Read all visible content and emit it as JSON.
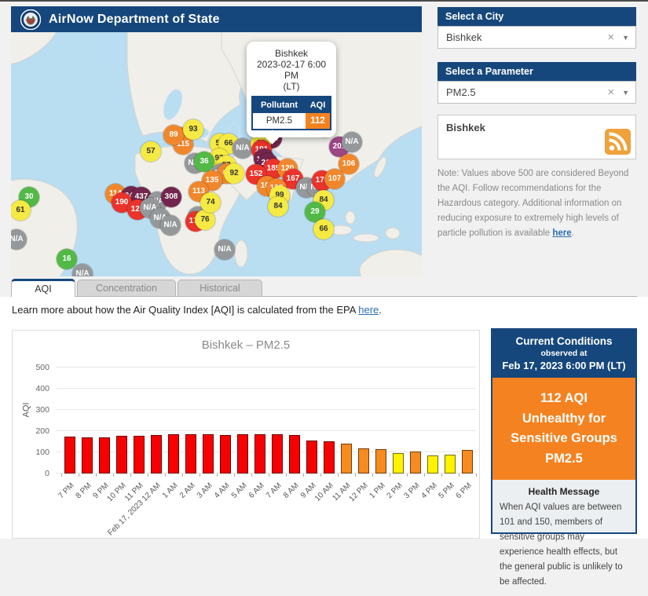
{
  "header": {
    "title": "AirNow Department of State"
  },
  "sidebar": {
    "city_label": "Select a City",
    "city_value": "Bishkek",
    "parameter_label": "Select a Parameter",
    "parameter_value": "PM2.5",
    "clear_icon": "×",
    "caret_icon": "▼",
    "feed_title": "Bishkek",
    "note_prefix": "Note: Values above 500 are considered Beyond the AQI. Follow recommendations for the Hazardous category. Additional information on reducing exposure to extremely high levels of particle pollution is available ",
    "note_link": "here",
    "note_suffix": "."
  },
  "map": {
    "popup": {
      "city": "Bishkek",
      "datetime": "2023-02-17 6:00 PM",
      "tz": "(LT)",
      "col_pollutant": "Pollutant",
      "col_aqi": "AQI",
      "pollutant": "PM2.5",
      "aqi": "112"
    },
    "markers": [
      {
        "v": "30",
        "c": "g",
        "x": 23,
        "y": 210
      },
      {
        "v": "61",
        "c": "y",
        "x": 12,
        "y": 227
      },
      {
        "v": "N/A",
        "c": "n",
        "x": 7,
        "y": 264
      },
      {
        "v": "N/A",
        "c": "n",
        "x": 91,
        "y": 308
      },
      {
        "v": "16",
        "c": "g",
        "x": 71,
        "y": 289
      },
      {
        "v": "57",
        "c": "y",
        "x": 178,
        "y": 152
      },
      {
        "v": "125",
        "c": "o",
        "x": 216,
        "y": 134
      },
      {
        "v": "115",
        "c": "o",
        "x": 219,
        "y": 143
      },
      {
        "v": "89",
        "c": "o",
        "x": 207,
        "y": 131
      },
      {
        "v": "93",
        "c": "y",
        "x": 232,
        "y": 124
      },
      {
        "v": "114",
        "c": "o",
        "x": 133,
        "y": 206
      },
      {
        "v": "242",
        "c": "m",
        "x": 153,
        "y": 209
      },
      {
        "v": "437",
        "c": "m",
        "x": 166,
        "y": 210
      },
      {
        "v": "190",
        "c": "r",
        "x": 141,
        "y": 217
      },
      {
        "v": "121",
        "c": "r",
        "x": 161,
        "y": 226
      },
      {
        "v": "N/A",
        "c": "n",
        "x": 186,
        "y": 216
      },
      {
        "v": "N/A",
        "c": "n",
        "x": 177,
        "y": 224
      },
      {
        "v": "308",
        "c": "m",
        "x": 204,
        "y": 210
      },
      {
        "v": "N/A",
        "c": "n",
        "x": 190,
        "y": 237
      },
      {
        "v": "N/A",
        "c": "n",
        "x": 203,
        "y": 246
      },
      {
        "v": "N/A",
        "c": "n",
        "x": 238,
        "y": 235
      },
      {
        "v": "172",
        "c": "r",
        "x": 235,
        "y": 241
      },
      {
        "v": "76",
        "c": "y",
        "x": 247,
        "y": 239
      },
      {
        "v": "N/A",
        "c": "n",
        "x": 272,
        "y": 277
      },
      {
        "v": "52",
        "c": "y",
        "x": 266,
        "y": 142
      },
      {
        "v": "66",
        "c": "y",
        "x": 277,
        "y": 142
      },
      {
        "v": "N/A",
        "c": "n",
        "x": 295,
        "y": 148
      },
      {
        "v": "93",
        "c": "y",
        "x": 265,
        "y": 161
      },
      {
        "v": "N/A",
        "c": "n",
        "x": 234,
        "y": 167
      },
      {
        "v": "36",
        "c": "g",
        "x": 246,
        "y": 165
      },
      {
        "v": "87",
        "c": "y",
        "x": 274,
        "y": 170
      },
      {
        "v": "N/A",
        "c": "n",
        "x": 268,
        "y": 180
      },
      {
        "v": "63",
        "c": "o",
        "x": 275,
        "y": 180
      },
      {
        "v": "92",
        "c": "y",
        "x": 284,
        "y": 180
      },
      {
        "v": "135",
        "c": "o",
        "x": 256,
        "y": 189
      },
      {
        "v": "113",
        "c": "o",
        "x": 239,
        "y": 203
      },
      {
        "v": "74",
        "c": "y",
        "x": 254,
        "y": 217
      },
      {
        "v": "1207",
        "c": "m",
        "x": 332,
        "y": 135
      },
      {
        "v": "66",
        "c": "y",
        "x": 318,
        "y": 142
      },
      {
        "v": "191",
        "c": "r",
        "x": 319,
        "y": 150
      },
      {
        "v": "1103",
        "c": "m",
        "x": 322,
        "y": 161
      },
      {
        "v": "215",
        "c": "m",
        "x": 327,
        "y": 167
      },
      {
        "v": "185",
        "c": "r",
        "x": 334,
        "y": 174
      },
      {
        "v": "120",
        "c": "o",
        "x": 352,
        "y": 174
      },
      {
        "v": "152",
        "c": "r",
        "x": 312,
        "y": 181
      },
      {
        "v": "167",
        "c": "r",
        "x": 359,
        "y": 187
      },
      {
        "v": "107",
        "c": "o",
        "x": 326,
        "y": 196
      },
      {
        "v": "127",
        "c": "o",
        "x": 338,
        "y": 199
      },
      {
        "v": "99",
        "c": "y",
        "x": 342,
        "y": 208
      },
      {
        "v": "84",
        "c": "y",
        "x": 340,
        "y": 222
      },
      {
        "v": "N/A",
        "c": "n",
        "x": 376,
        "y": 198
      },
      {
        "v": "N/A",
        "c": "n",
        "x": 390,
        "y": 198
      },
      {
        "v": "N/A",
        "c": "n",
        "x": 399,
        "y": 121
      },
      {
        "v": "201",
        "c": "p",
        "x": 418,
        "y": 146
      },
      {
        "v": "N/A",
        "c": "n",
        "x": 434,
        "y": 140
      },
      {
        "v": "106",
        "c": "o",
        "x": 430,
        "y": 168
      },
      {
        "v": "175",
        "c": "r",
        "x": 396,
        "y": 189
      },
      {
        "v": "107",
        "c": "o",
        "x": 412,
        "y": 187
      },
      {
        "v": "84",
        "c": "y",
        "x": 398,
        "y": 214
      },
      {
        "v": "29",
        "c": "g",
        "x": 387,
        "y": 229
      },
      {
        "v": "66",
        "c": "y",
        "x": 398,
        "y": 251
      }
    ]
  },
  "tabs": {
    "aqi": "AQI",
    "concentration": "Concentration",
    "historical": "Historical"
  },
  "learn_more": {
    "prefix": "Learn more about how the Air Quality Index [AQI] is calculated from the EPA ",
    "link": "here",
    "suffix": "."
  },
  "chart_data": {
    "type": "bar",
    "title": "Bishkek – PM2.5",
    "xlabel": "",
    "ylabel": "AQI",
    "ylim": [
      0,
      550
    ],
    "yticks": [
      0,
      100,
      200,
      300,
      400,
      500
    ],
    "grid": true,
    "legend": "none",
    "categories": [
      "7 PM",
      "8 PM",
      "9 PM",
      "10 PM",
      "11 PM",
      "Feb 17, 2023 12 AM",
      "1 AM",
      "2 AM",
      "3 AM",
      "4 AM",
      "5 AM",
      "6 AM",
      "7 AM",
      "8 AM",
      "9 AM",
      "10 AM",
      "11 AM",
      "12 PM",
      "1 PM",
      "2 PM",
      "3 PM",
      "4 PM",
      "5 PM",
      "6 PM"
    ],
    "values": [
      175,
      172,
      172,
      178,
      178,
      182,
      186,
      186,
      186,
      183,
      186,
      186,
      186,
      182,
      157,
      152,
      140,
      120,
      116,
      95,
      104,
      86,
      89,
      112
    ],
    "color_rule": "red >150, orange 101-150, yellow 51-100"
  },
  "conditions": {
    "title": "Current Conditions",
    "observed_at": "observed at",
    "datetime": "Feb 17, 2023 6:00 PM (LT)",
    "aqi_line": "112 AQI",
    "category": "Unhealthy for Sensitive Groups",
    "pollutant": "PM2.5",
    "health_title": "Health Message",
    "health_text": "When AQI values are between 101 and 150, members of sensitive groups may experience health effects, but the general public is unlikely to be affected."
  },
  "colors": {
    "navy": "#16477C",
    "orange": "#F58220",
    "aqi": {
      "g": "#52B947",
      "y": "#F5E943",
      "o": "#F1872C",
      "r": "#EA332B",
      "p": "#9D4585",
      "m": "#73264D",
      "n": "#95989A"
    },
    "bars": {
      "red": "#F60000",
      "orange": "#F68B1F",
      "yellow": "#FFF200"
    }
  }
}
